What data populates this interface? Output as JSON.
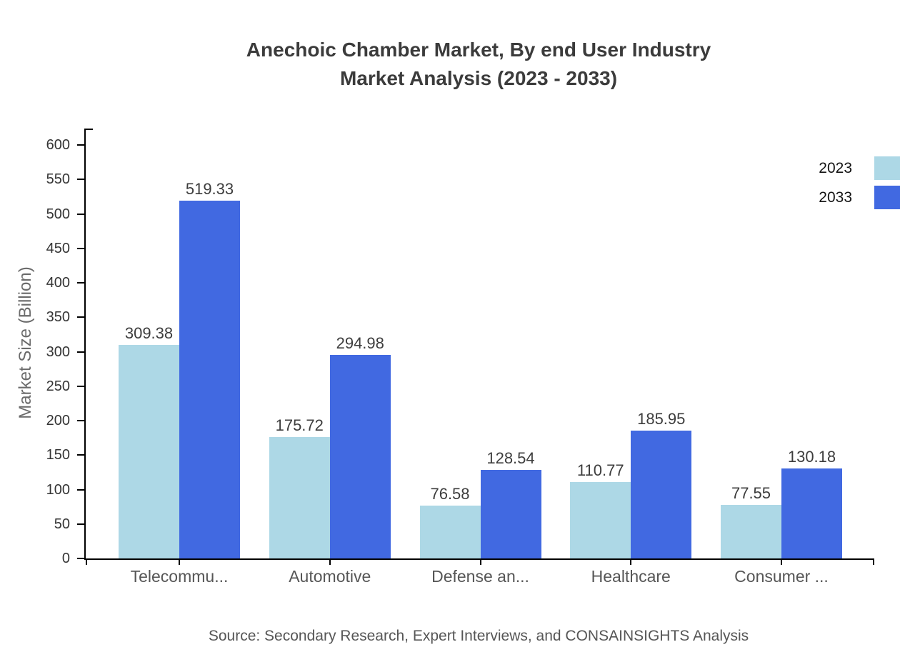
{
  "chart_data": {
    "type": "bar",
    "title": "Anechoic Chamber Market, By end User Industry",
    "subtitle": "Market Analysis (2023 - 2033)",
    "ylabel": "Market Size (Billion)",
    "categories": [
      "Telecommu...",
      "Automotive",
      "Defense an...",
      "Healthcare",
      "Consumer ..."
    ],
    "series": [
      {
        "name": "2023",
        "color": "#ADD8E6",
        "values": [
          309.38,
          175.72,
          76.58,
          110.77,
          77.55
        ]
      },
      {
        "name": "2033",
        "color": "#4169E1",
        "values": [
          519.33,
          294.98,
          128.54,
          185.95,
          130.18
        ]
      }
    ],
    "value_labels": [
      "309.38",
      "519.33",
      "175.72",
      "294.98",
      "76.58",
      "128.54",
      "110.77",
      "185.95",
      "77.55",
      "130.18"
    ],
    "ylim": [
      0,
      600
    ],
    "ytick_step": 50,
    "ytick_labels": [
      "0",
      "50",
      "100",
      "150",
      "200",
      "250",
      "300",
      "350",
      "400",
      "450",
      "500",
      "550",
      "600"
    ],
    "grid": false,
    "legend_position": "top-right",
    "source": "Source: Secondary Research, Expert Interviews, and CONSAINSIGHTS Analysis"
  },
  "colors": {
    "axis": "#000000",
    "title_text": "#3b3b3b",
    "tick_text": "#343434",
    "category_text": "#565656",
    "muted_text": "#6b6b6b",
    "series_2023": "#ADD8E6",
    "series_2033": "#4169E1",
    "background": "#ffffff"
  }
}
